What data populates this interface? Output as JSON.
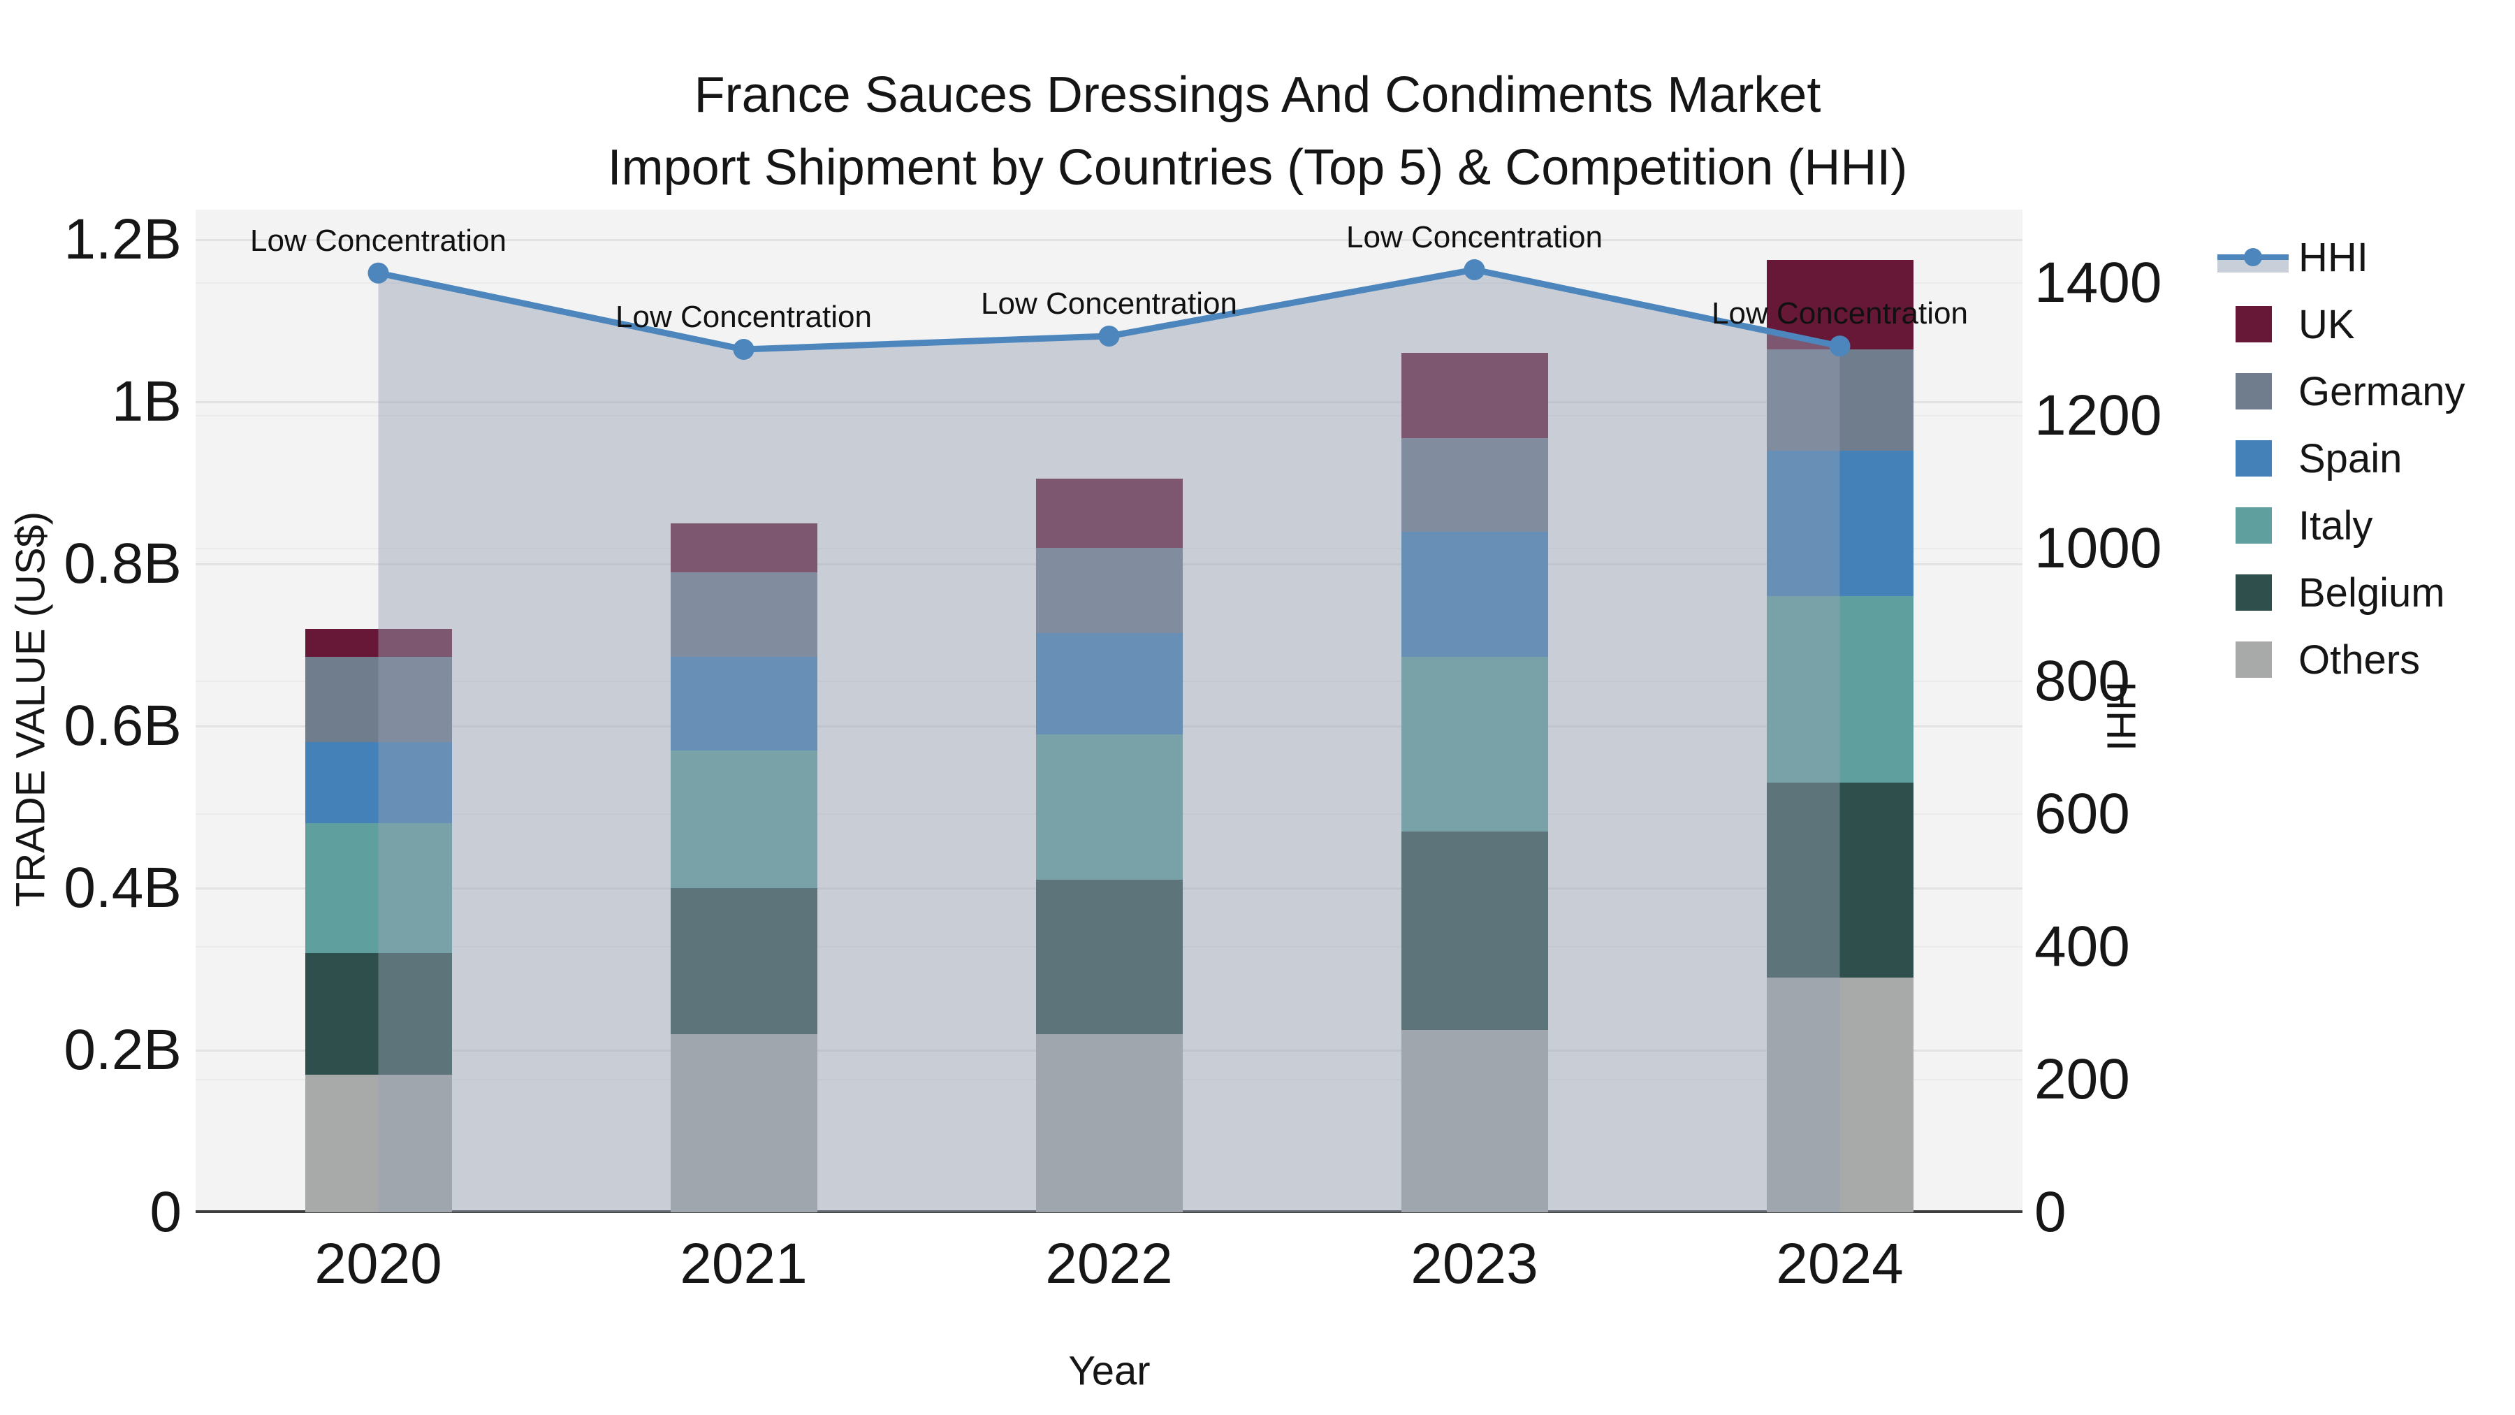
{
  "title": {
    "line1": "France Sauces Dressings And Condiments Market",
    "line2": "Import Shipment by Countries (Top 5) & Competition (HHI)"
  },
  "axes": {
    "y_left": {
      "title": "TRADE VALUE (US$)",
      "tick_labels": [
        "0",
        "0.2B",
        "0.4B",
        "0.6B",
        "0.8B",
        "1B",
        "1.2B"
      ],
      "tick_values": [
        0,
        0.2,
        0.4,
        0.6,
        0.8,
        1.0,
        1.2
      ]
    },
    "y_right": {
      "title": "HHI",
      "tick_labels": [
        "0",
        "200",
        "400",
        "600",
        "800",
        "1000",
        "1200",
        "1400"
      ],
      "tick_values": [
        0,
        200,
        400,
        600,
        800,
        1000,
        1200,
        1400
      ]
    },
    "x": {
      "title": "Year",
      "categories": [
        "2020",
        "2021",
        "2022",
        "2023",
        "2024"
      ]
    }
  },
  "legend": {
    "items": [
      {
        "label": "HHI",
        "type": "line",
        "color": "#4d86bd"
      },
      {
        "label": "UK",
        "type": "swatch",
        "color": "#681837"
      },
      {
        "label": "Germany",
        "type": "swatch",
        "color": "#6f7d8c"
      },
      {
        "label": "Spain",
        "type": "swatch",
        "color": "#4381b8"
      },
      {
        "label": "Italy",
        "type": "swatch",
        "color": "#5fa09e"
      },
      {
        "label": "Belgium",
        "type": "swatch",
        "color": "#2f4f4c"
      },
      {
        "label": "Others",
        "type": "swatch",
        "color": "#a8aaa9"
      }
    ]
  },
  "annotations": [
    {
      "text": "Low Concentration",
      "year": "2020"
    },
    {
      "text": "Low Concentration",
      "year": "2021"
    },
    {
      "text": "Low Concentration",
      "year": "2022"
    },
    {
      "text": "Low Concentration",
      "year": "2023"
    },
    {
      "text": "Low Concentration",
      "year": "2024"
    }
  ],
  "colors": {
    "plot_bg": "#f3f3f3",
    "grid_left_axis": "#e2e2e2",
    "grid_right_axis": "#eaeaea",
    "axis_line": "#3d3d3d",
    "hhi_line": "#4d86bd",
    "hhi_area_fill": "rgba(150,162,180,0.45)",
    "text": "#151515"
  },
  "chart_data": {
    "type": "combo-stacked-bar-line",
    "categories": [
      "2020",
      "2021",
      "2022",
      "2023",
      "2024"
    ],
    "bar_unit": "billion US$ (left axis)",
    "line_unit": "HHI index (right axis)",
    "stack_order_bottom_to_top": [
      "Others",
      "Belgium",
      "Italy",
      "Spain",
      "Germany",
      "UK"
    ],
    "series": [
      {
        "name": "Others",
        "type": "bar",
        "yaxis": "left",
        "color": "#a8aaa9",
        "values": [
          0.17,
          0.22,
          0.22,
          0.225,
          0.29
        ]
      },
      {
        "name": "Belgium",
        "type": "bar",
        "yaxis": "left",
        "color": "#2f4f4c",
        "values": [
          0.15,
          0.18,
          0.19,
          0.245,
          0.24
        ]
      },
      {
        "name": "Italy",
        "type": "bar",
        "yaxis": "left",
        "color": "#5fa09e",
        "values": [
          0.16,
          0.17,
          0.18,
          0.215,
          0.23
        ]
      },
      {
        "name": "Spain",
        "type": "bar",
        "yaxis": "left",
        "color": "#4381b8",
        "values": [
          0.1,
          0.115,
          0.125,
          0.155,
          0.18
        ]
      },
      {
        "name": "Germany",
        "type": "bar",
        "yaxis": "left",
        "color": "#6f7d8c",
        "values": [
          0.105,
          0.105,
          0.105,
          0.115,
          0.125
        ]
      },
      {
        "name": "UK",
        "type": "bar",
        "yaxis": "left",
        "color": "#681837",
        "values": [
          0.035,
          0.06,
          0.085,
          0.105,
          0.11
        ]
      },
      {
        "name": "HHI",
        "type": "line",
        "yaxis": "right",
        "color": "#4d86bd",
        "values": [
          1415,
          1300,
          1320,
          1420,
          1305
        ],
        "area_fill": true
      }
    ],
    "stack_totals": [
      0.72,
      0.85,
      0.905,
      1.06,
      1.175
    ],
    "y_left_range": [
      0,
      1.237
    ],
    "y_right_range": [
      0,
      1510
    ],
    "grid": true,
    "legend_position": "outside-top-right"
  }
}
